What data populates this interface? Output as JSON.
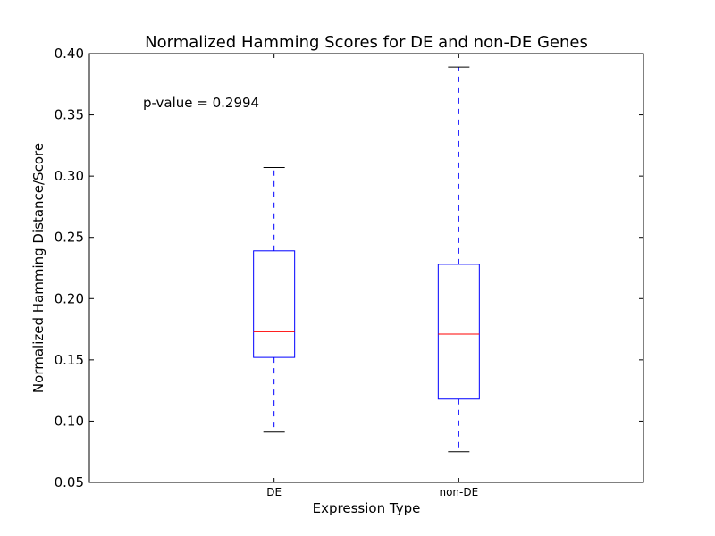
{
  "chart_data": {
    "type": "box",
    "title": "Normalized Hamming Scores for DE and non-DE Genes",
    "xlabel": "Expression Type",
    "ylabel": "Normalized Hamming Distance/Score",
    "ylim": [
      0.05,
      0.4
    ],
    "yticks": [
      0.05,
      0.1,
      0.15,
      0.2,
      0.25,
      0.3,
      0.35,
      0.4
    ],
    "ytick_labels": [
      "0.05",
      "0.10",
      "0.15",
      "0.20",
      "0.25",
      "0.30",
      "0.35",
      "0.40"
    ],
    "grid": false,
    "annotation": "p-value = 0.2994",
    "categories": [
      "DE",
      "non-DE"
    ],
    "boxes": [
      {
        "category": "DE",
        "whisker_low": 0.091,
        "q1": 0.152,
        "median": 0.173,
        "q3": 0.239,
        "whisker_high": 0.307
      },
      {
        "category": "non-DE",
        "whisker_low": 0.075,
        "q1": 0.118,
        "median": 0.171,
        "q3": 0.228,
        "whisker_high": 0.389
      }
    ],
    "colors": {
      "box": "#0000ff",
      "median": "#ff0000",
      "whisker": "#0000ff",
      "cap": "#000000",
      "axes": "#000000"
    }
  }
}
